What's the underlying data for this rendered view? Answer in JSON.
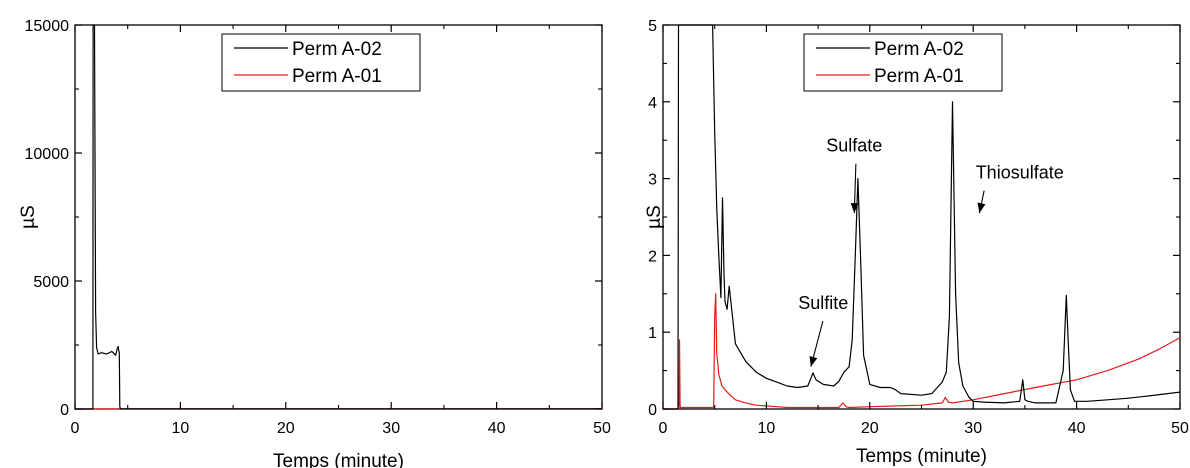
{
  "chart_data": [
    {
      "type": "line",
      "xlabel": "Temps (minute)",
      "ylabel": "µS",
      "xlim": [
        0,
        50
      ],
      "ylim": [
        0,
        15000
      ],
      "xticks": [
        "0",
        "10",
        "20",
        "30",
        "40",
        "50"
      ],
      "yticks": [
        "0",
        "5000",
        "10000",
        "15000"
      ],
      "legend_position": "top-center",
      "series": [
        {
          "name": "Perm A-02",
          "color": "#000000",
          "x": [
            0,
            1.7,
            1.72,
            1.75,
            1.85,
            1.95,
            2.05,
            2.2,
            2.5,
            3.0,
            3.5,
            3.85,
            4.0,
            4.1,
            4.15,
            4.2,
            4.25,
            4.3,
            4.35,
            4.6,
            10,
            20,
            30,
            40,
            50
          ],
          "y": [
            0,
            0,
            15000,
            15000,
            15000,
            3800,
            2400,
            2150,
            2200,
            2150,
            2250,
            2100,
            2350,
            2450,
            2300,
            2200,
            100,
            10,
            5,
            5,
            5,
            5,
            5,
            5,
            5
          ]
        },
        {
          "name": "Perm A-01",
          "color": "#e31a1c",
          "x": [
            0,
            5,
            10,
            20,
            30,
            40,
            50
          ],
          "y": [
            0,
            3,
            2,
            2,
            3,
            5,
            10
          ]
        }
      ]
    },
    {
      "type": "line",
      "xlabel": "Temps (minute)",
      "ylabel": "µS",
      "xlim": [
        0,
        50
      ],
      "ylim": [
        0,
        5
      ],
      "xticks": [
        "0",
        "10",
        "20",
        "30",
        "40",
        "50"
      ],
      "yticks": [
        "0",
        "1",
        "2",
        "3",
        "4",
        "5"
      ],
      "legend_position": "top-center",
      "annotations": [
        {
          "text": "Sulfite",
          "x": 15.5,
          "y": 1.3
        },
        {
          "text": "Sulfate",
          "x": 18.5,
          "y": 3.35
        },
        {
          "text": "Thiosulfate",
          "x": 34.5,
          "y": 3.0
        }
      ],
      "series": [
        {
          "name": "Perm A-02",
          "color": "#000000",
          "x": [
            0,
            1.45,
            1.5,
            1.6,
            1.7,
            1.75,
            4.8,
            5.0,
            5.2,
            5.4,
            5.6,
            5.75,
            5.9,
            6.0,
            6.2,
            6.4,
            7,
            8,
            9,
            10,
            11,
            12,
            13,
            14,
            14.3,
            14.5,
            14.8,
            15.5,
            16.5,
            17,
            17.5,
            18,
            18.3,
            18.6,
            18.85,
            19.1,
            19.4,
            20,
            21,
            22,
            22.5,
            23,
            25,
            26,
            27,
            27.4,
            27.7,
            28,
            28.3,
            28.6,
            29,
            29.6,
            30,
            31,
            33,
            34.5,
            34.8,
            35,
            35.3,
            36,
            38,
            38.7,
            39,
            39.2,
            39.4,
            39.8,
            41,
            43,
            45,
            47,
            50
          ],
          "y": [
            0,
            0,
            5,
            5,
            5,
            5,
            5,
            3.6,
            2.6,
            2.0,
            1.45,
            2.75,
            1.75,
            1.4,
            1.3,
            1.6,
            0.85,
            0.62,
            0.48,
            0.4,
            0.35,
            0.3,
            0.28,
            0.3,
            0.4,
            0.47,
            0.38,
            0.32,
            0.3,
            0.36,
            0.48,
            0.55,
            0.9,
            2.0,
            3.0,
            2.0,
            0.7,
            0.32,
            0.28,
            0.28,
            0.25,
            0.2,
            0.18,
            0.2,
            0.35,
            0.48,
            1.2,
            4.0,
            1.5,
            0.6,
            0.3,
            0.15,
            0.1,
            0.09,
            0.08,
            0.1,
            0.38,
            0.12,
            0.1,
            0.08,
            0.08,
            0.5,
            1.48,
            0.85,
            0.25,
            0.1,
            0.1,
            0.12,
            0.14,
            0.17,
            0.22
          ]
        },
        {
          "name": "Perm A-01",
          "color": "#e31a1c",
          "x": [
            0,
            1.55,
            1.6,
            1.65,
            1.7,
            1.75,
            2.0,
            4.9,
            5.0,
            5.1,
            5.2,
            5.3,
            5.4,
            5.5,
            5.7,
            6.0,
            6.5,
            7,
            8,
            9,
            10,
            11,
            12,
            15,
            17,
            17.4,
            17.7,
            18,
            20,
            25,
            27,
            27.3,
            27.6,
            28,
            30,
            33,
            36,
            40,
            43,
            46,
            48,
            50
          ],
          "y": [
            0,
            0,
            0.9,
            0.05,
            0.01,
            0.02,
            0.02,
            0.02,
            1.2,
            1.5,
            0.7,
            0.6,
            0.45,
            0.4,
            0.3,
            0.25,
            0.18,
            0.12,
            0.08,
            0.05,
            0.04,
            0.03,
            0.02,
            0.02,
            0.02,
            0.08,
            0.03,
            0.02,
            0.03,
            0.05,
            0.08,
            0.15,
            0.09,
            0.08,
            0.12,
            0.2,
            0.28,
            0.38,
            0.5,
            0.65,
            0.78,
            0.93
          ]
        }
      ]
    }
  ]
}
